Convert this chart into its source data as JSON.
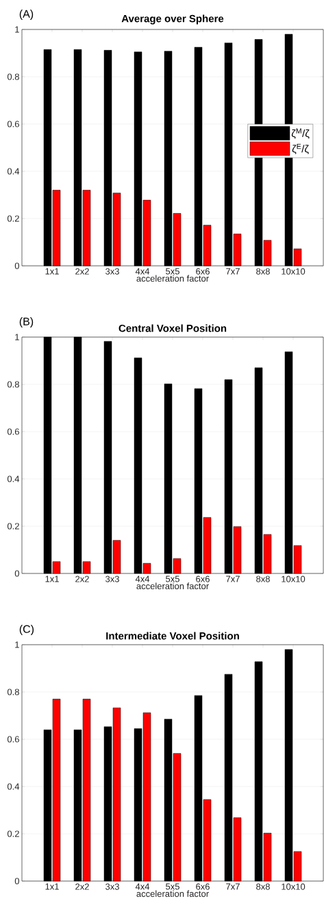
{
  "chart_data": [
    {
      "type": "bar",
      "title": "Average over Sphere",
      "xlabel": "acceleration factor",
      "annotations": [
        "(A)"
      ],
      "categories": [
        "1x1",
        "2x2",
        "3x3",
        "4x4",
        "5x5",
        "6x6",
        "7x7",
        "8x8",
        "10x10"
      ],
      "series": [
        {
          "name": "ζ$^{M}$/ζ",
          "color": "#000000",
          "values": [
            0.915,
            0.915,
            0.912,
            0.905,
            0.908,
            0.925,
            0.943,
            0.958,
            0.98
          ]
        },
        {
          "name": "ζ$^{E}$/ζ",
          "color": "#ff0000",
          "values": [
            0.32,
            0.32,
            0.308,
            0.278,
            0.222,
            0.172,
            0.135,
            0.108,
            0.072
          ]
        }
      ],
      "ylim": [
        0,
        1
      ],
      "yticks": [
        0,
        0.2,
        0.4,
        0.6,
        0.8,
        1
      ],
      "grid": "y",
      "legend": "right"
    },
    {
      "type": "bar",
      "title": "Central Voxel Position",
      "xlabel": "acceleration factor",
      "annotations": [
        "(B)"
      ],
      "categories": [
        "1x1",
        "2x2",
        "3x3",
        "4x4",
        "5x5",
        "6x6",
        "7x7",
        "8x8",
        "10x10"
      ],
      "series": [
        {
          "color": "#000000",
          "values": [
            1,
            1,
            0.982,
            0.912,
            0.802,
            0.782,
            0.82,
            0.87,
            0.938
          ]
        },
        {
          "color": "#ff0000",
          "values": [
            0.05,
            0.05,
            0.14,
            0.043,
            0.063,
            0.237,
            0.198,
            0.165,
            0.118
          ]
        }
      ],
      "ylim": [
        0,
        1
      ],
      "yticks": [
        0,
        0.2,
        0.4,
        0.6,
        0.8,
        1
      ],
      "grid": "y"
    },
    {
      "type": "bar",
      "title": "Intermediate Voxel Position",
      "xlabel": "acceleration factor",
      "annotations": [
        "(C)"
      ],
      "categories": [
        "1x1",
        "2x2",
        "3x3",
        "4x4",
        "5x5",
        "6x6",
        "7x7",
        "8x8",
        "10x10"
      ],
      "series": [
        {
          "color": "#000000",
          "values": [
            0.64,
            0.64,
            0.653,
            0.645,
            0.685,
            0.785,
            0.875,
            0.928,
            0.98
          ]
        },
        {
          "color": "#ff0000",
          "values": [
            0.77,
            0.77,
            0.733,
            0.712,
            0.54,
            0.345,
            0.268,
            0.203,
            0.125
          ]
        }
      ],
      "ylim": [
        0,
        1
      ],
      "yticks": [
        0,
        0.2,
        0.4,
        0.6,
        0.8,
        1
      ],
      "grid": "y"
    }
  ]
}
